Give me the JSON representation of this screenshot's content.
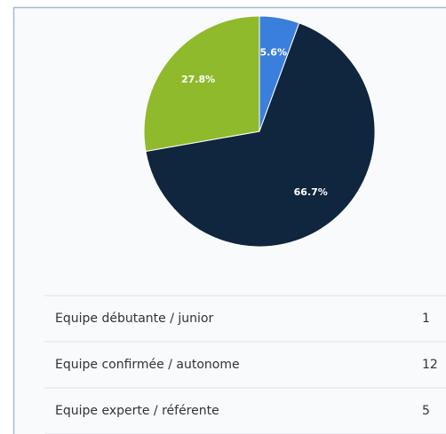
{
  "chart_data": {
    "type": "pie",
    "categories": [
      "Equipe débutante / junior",
      "Equipe confirmée / autonome",
      "Equipe experte / référente"
    ],
    "values": [
      5.6,
      66.7,
      27.8
    ],
    "value_labels": [
      "5.6%",
      "66.7%",
      "27.8%"
    ],
    "colors": [
      "#3b7fdd",
      "#10253e",
      "#8fba2c"
    ]
  },
  "table": {
    "rows": [
      [
        "Equipe débutante / junior",
        1
      ],
      [
        "Equipe confirmée / autonome",
        12
      ],
      [
        "Equipe experte / référente",
        5
      ]
    ]
  }
}
